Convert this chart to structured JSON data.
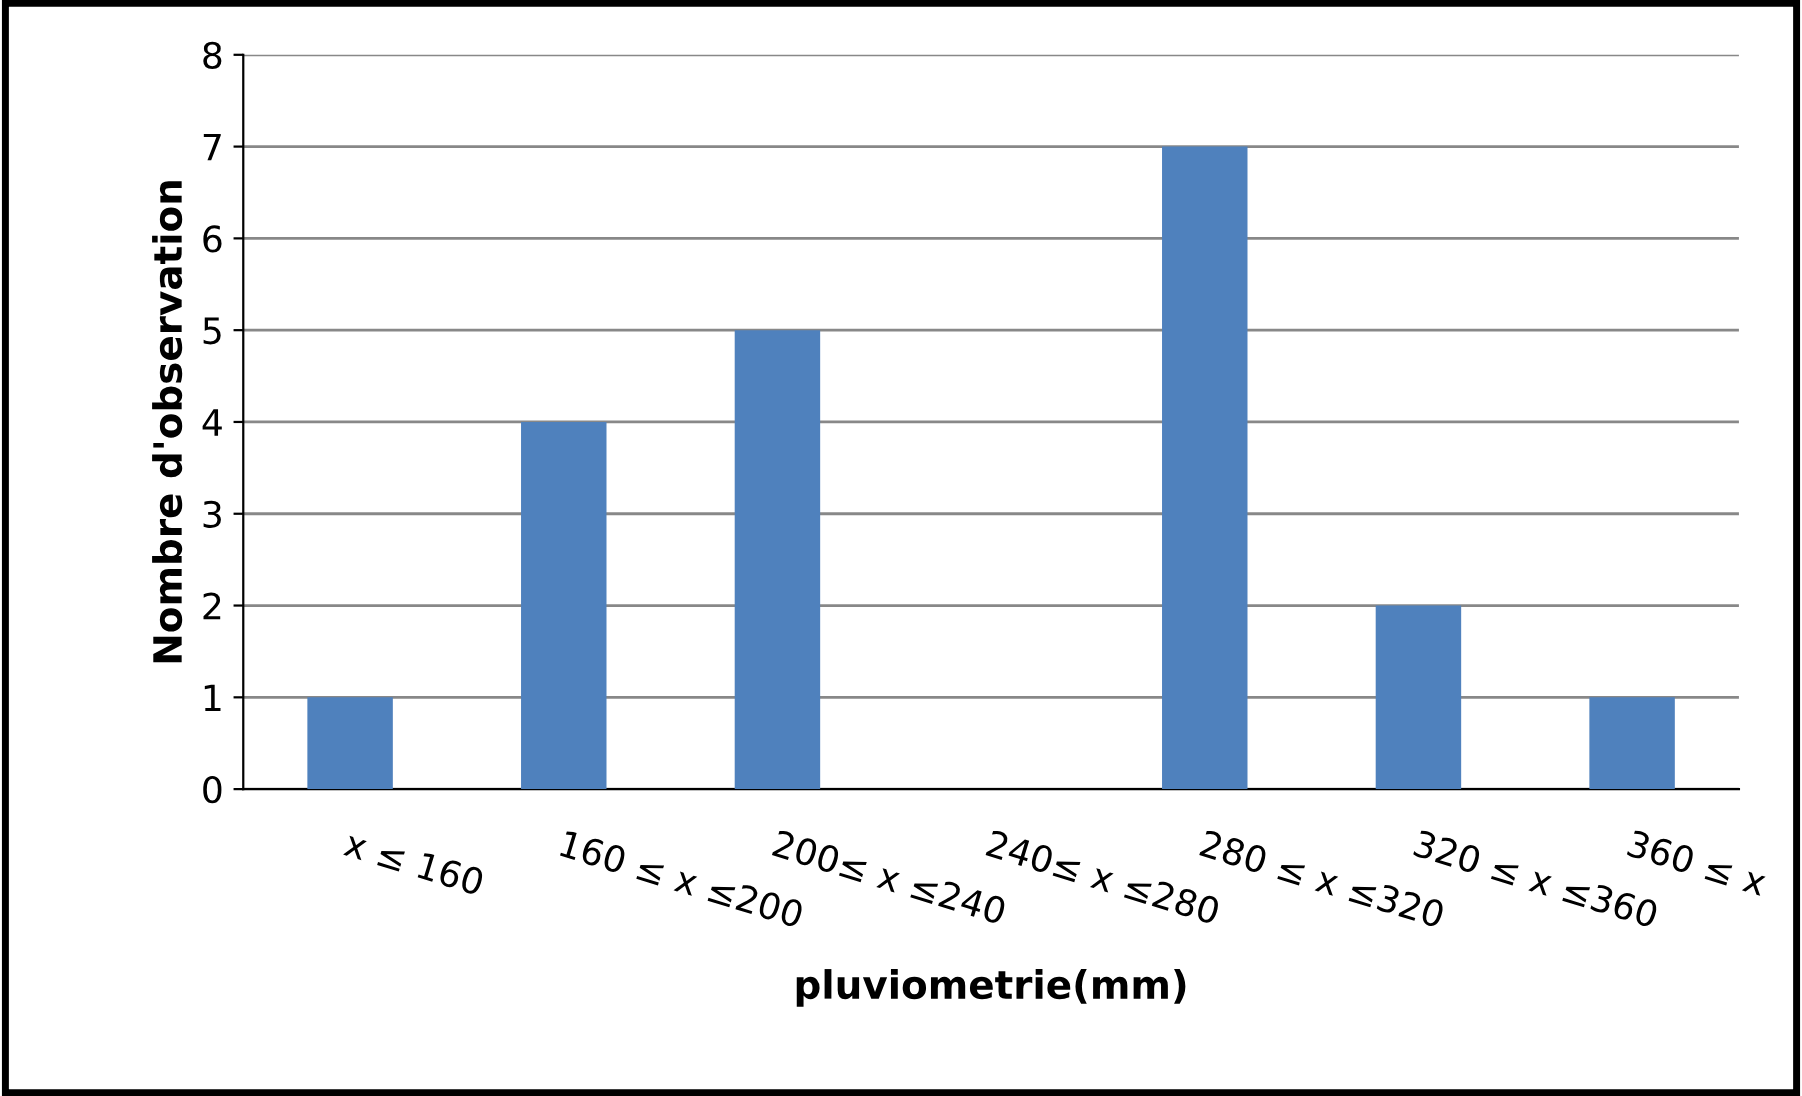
{
  "chart_data": {
    "type": "bar",
    "xlabel": "pluviometrie(mm)",
    "ylabel": "Nombre d'observation",
    "categories": [
      "x ≤ 160",
      "160 ≤ x ≤200",
      "200≤ x ≤240",
      "240≤ x ≤280",
      "280 ≤ x ≤320",
      "320 ≤ x ≤360",
      "360 ≤ x"
    ],
    "values": [
      1,
      4,
      5,
      0,
      7,
      2,
      1
    ],
    "color": "#4f81bd",
    "ylim": [
      0,
      8
    ],
    "yticks": [
      0,
      1,
      2,
      3,
      4,
      5,
      6,
      7,
      8
    ],
    "grid": "y"
  }
}
